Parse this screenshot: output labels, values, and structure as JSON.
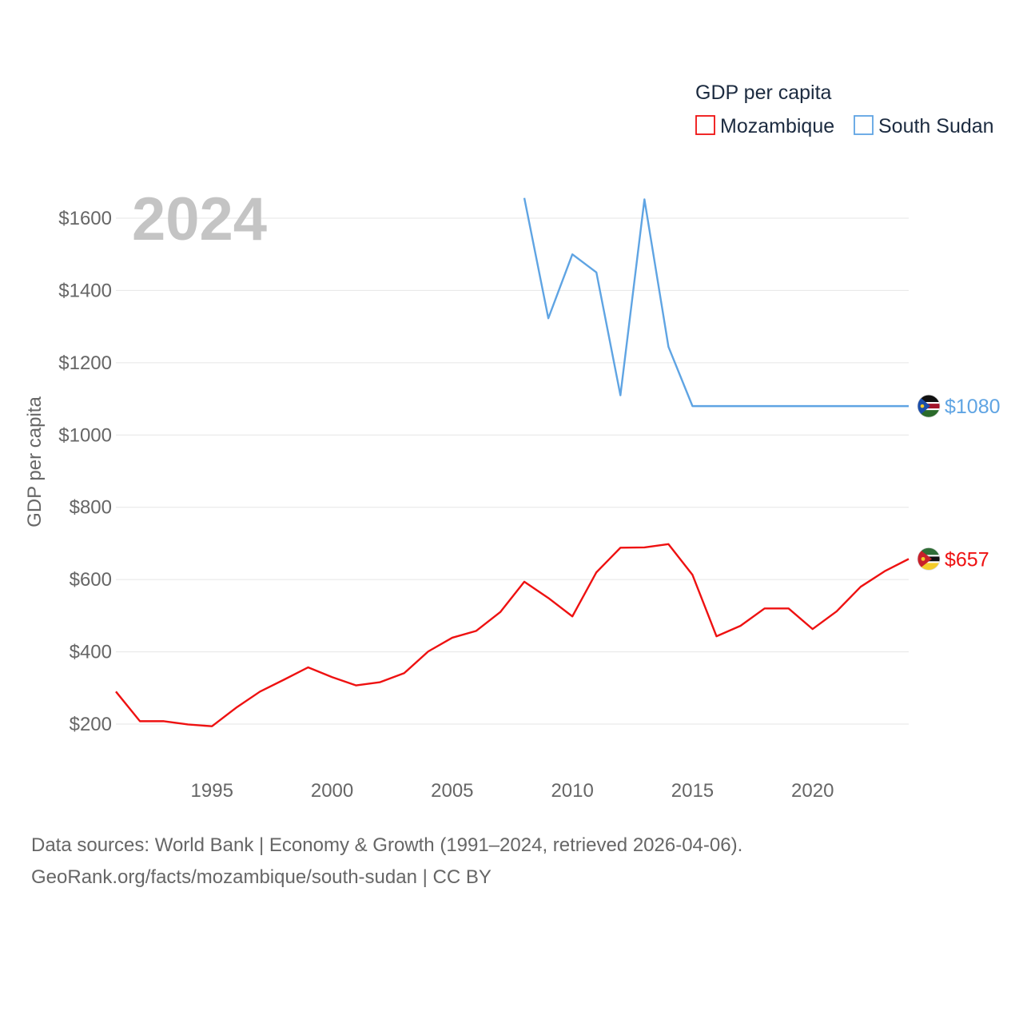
{
  "chart_data": {
    "type": "line",
    "title": "GDP per capita",
    "ylabel": "GDP per capita",
    "xlabel": "",
    "highlight_year": "2024",
    "xlim": [
      1991,
      2024
    ],
    "ylim": [
      100,
      1700
    ],
    "x_ticks": [
      1995,
      2000,
      2005,
      2010,
      2015,
      2020
    ],
    "x_tick_labels": [
      "1995",
      "2000",
      "2005",
      "2010",
      "2015",
      "2020"
    ],
    "y_ticks": [
      200,
      400,
      600,
      800,
      1000,
      1200,
      1400,
      1600
    ],
    "y_tick_labels": [
      "$200",
      "$400",
      "$600",
      "$800",
      "$1000",
      "$1200",
      "$1400",
      "$1600"
    ],
    "legend": {
      "title": "GDP per capita",
      "position": "top-right"
    },
    "series": [
      {
        "name": "Mozambique",
        "color": "#ee1111",
        "end_label": "$657",
        "flag": "mozambique-flag",
        "x": [
          1991,
          1992,
          1993,
          1994,
          1995,
          1996,
          1997,
          1998,
          1999,
          2000,
          2001,
          2002,
          2003,
          2004,
          2005,
          2006,
          2007,
          2008,
          2009,
          2010,
          2011,
          2012,
          2013,
          2014,
          2015,
          2016,
          2017,
          2018,
          2019,
          2020,
          2021,
          2022,
          2023,
          2024
        ],
        "values": [
          290,
          208,
          208,
          199,
          194,
          245,
          290,
          323,
          357,
          330,
          307,
          316,
          341,
          401,
          439,
          458,
          510,
          594,
          549,
          498,
          620,
          688,
          689,
          698,
          613,
          443,
          472,
          520,
          520,
          463,
          512,
          580,
          623,
          657
        ]
      },
      {
        "name": "South Sudan",
        "color": "#5fa4e3",
        "end_label": "$1080",
        "flag": "south-sudan-flag",
        "x": [
          2008,
          2009,
          2010,
          2011,
          2012,
          2013,
          2014,
          2015,
          2016,
          2017,
          2018,
          2019,
          2020,
          2021,
          2022,
          2023,
          2024
        ],
        "values": [
          1656,
          1323,
          1500,
          1450,
          1110,
          1652,
          1244,
          1080,
          1080,
          1080,
          1080,
          1080,
          1080,
          1080,
          1080,
          1080,
          1080
        ]
      }
    ]
  },
  "footer": {
    "line1": "Data sources: World Bank | Economy & Growth (1991–2024, retrieved 2026-04-06).",
    "line2": "GeoRank.org/facts/mozambique/south-sudan | CC BY"
  }
}
